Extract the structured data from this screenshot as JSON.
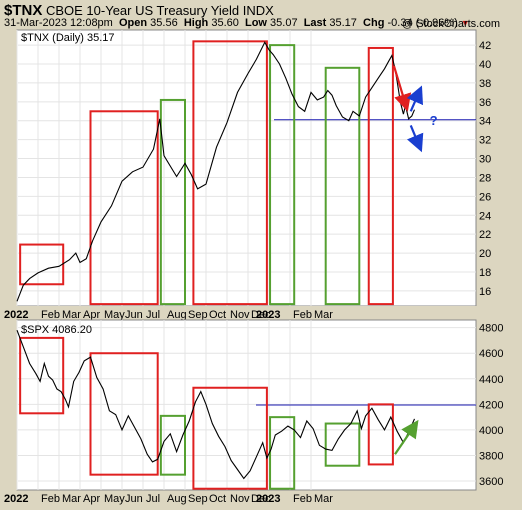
{
  "header": {
    "symbol": "$TNX",
    "name": "CBOE 10-Year US Treasury Yield",
    "index": "INDX",
    "datetime": "31-Mar-2023 12:08pm",
    "open_label": "Open",
    "open": "35.56",
    "high_label": "High",
    "high": "35.60",
    "low_label": "Low",
    "low": "35.07",
    "last_label": "Last",
    "last": "35.17",
    "chg_label": "Chg",
    "chg": "-0.34 (-0.96%)",
    "chg_marker": "▼",
    "brand": "@ StockCharts.com"
  },
  "colors": {
    "background": "#dcd6c0",
    "plot": "#ffffff",
    "red_box": "#e02020",
    "green_box": "#55a030",
    "level_line": "#1a1ab0",
    "blue_arrow": "#1a3fd0",
    "price": "#000000"
  },
  "chart_data": [
    {
      "type": "line",
      "title": "$TNX (Daily) 35.17",
      "series": [
        {
          "name": "$TNX (Daily)",
          "points": [
            [
              0,
              14.9
            ],
            [
              0.3,
              16.6
            ],
            [
              0.6,
              17.3
            ],
            [
              1.0,
              17.9
            ],
            [
              1.5,
              18.4
            ],
            [
              2.0,
              18.6
            ],
            [
              2.5,
              19.3
            ],
            [
              2.8,
              20.0
            ],
            [
              3.0,
              19.0
            ],
            [
              3.3,
              19.4
            ],
            [
              3.6,
              21.3
            ],
            [
              4.0,
              23.3
            ],
            [
              4.5,
              25.0
            ],
            [
              5.0,
              27.6
            ],
            [
              5.5,
              28.6
            ],
            [
              6.0,
              29.1
            ],
            [
              6.5,
              31.0
            ],
            [
              6.8,
              34.2
            ],
            [
              7.0,
              30.3
            ],
            [
              7.3,
              29.2
            ],
            [
              7.6,
              28.1
            ],
            [
              8.0,
              29.5
            ],
            [
              8.3,
              28.3
            ],
            [
              8.6,
              26.8
            ],
            [
              9.0,
              27.3
            ],
            [
              9.5,
              31.2
            ],
            [
              10.0,
              33.8
            ],
            [
              10.5,
              37.0
            ],
            [
              11.0,
              39.0
            ],
            [
              11.4,
              40.5
            ],
            [
              11.8,
              42.3
            ],
            [
              12.0,
              41.5
            ],
            [
              12.2,
              41.0
            ],
            [
              12.5,
              40.0
            ],
            [
              12.8,
              38.5
            ],
            [
              13.1,
              36.8
            ],
            [
              13.4,
              35.5
            ],
            [
              13.7,
              35.0
            ],
            [
              14.0,
              37.0
            ],
            [
              14.3,
              36.2
            ],
            [
              14.6,
              36.5
            ],
            [
              14.8,
              37.2
            ],
            [
              15.0,
              36.7
            ],
            [
              15.2,
              35.6
            ],
            [
              15.5,
              34.4
            ],
            [
              15.8,
              34.0
            ],
            [
              16.0,
              35.0
            ],
            [
              16.3,
              34.5
            ],
            [
              16.6,
              36.5
            ],
            [
              16.9,
              37.5
            ],
            [
              17.2,
              38.5
            ],
            [
              17.5,
              39.5
            ],
            [
              17.7,
              40.3
            ],
            [
              17.85,
              40.9
            ],
            [
              18.0,
              39.5
            ],
            [
              18.1,
              38.2
            ],
            [
              18.25,
              36.0
            ],
            [
              18.4,
              34.7
            ],
            [
              18.5,
              35.6
            ],
            [
              18.65,
              34.2
            ],
            [
              18.8,
              34.5
            ],
            [
              18.93,
              35.17
            ]
          ]
        }
      ],
      "x_ticks": [
        "2022",
        "Feb",
        "Mar",
        "Apr",
        "May",
        "Jun",
        "Jul",
        "Aug",
        "Sep",
        "Oct",
        "Nov",
        "Dec",
        "2023",
        "Feb",
        "Mar"
      ],
      "y_ticks": [
        16,
        18,
        20,
        22,
        24,
        26,
        28,
        30,
        32,
        34,
        36,
        38,
        40,
        42
      ],
      "ylim": [
        14.4,
        43.6
      ],
      "reference_line": 34.1,
      "annotations": [
        {
          "shape": "box",
          "color": "red",
          "x": [
            0.15,
            2.2
          ],
          "y": [
            20.9,
            16.7
          ]
        },
        {
          "shape": "box",
          "color": "red",
          "x": [
            3.5,
            6.7
          ],
          "y": [
            35.0,
            14.6
          ]
        },
        {
          "shape": "box",
          "color": "green",
          "x": [
            6.85,
            8.0
          ],
          "y": [
            36.2,
            14.6
          ]
        },
        {
          "shape": "box",
          "color": "red",
          "x": [
            8.4,
            11.9
          ],
          "y": [
            42.4,
            14.6
          ]
        },
        {
          "shape": "box",
          "color": "green",
          "x": [
            12.05,
            13.2
          ],
          "y": [
            42.0,
            14.6
          ]
        },
        {
          "shape": "box",
          "color": "green",
          "x": [
            14.7,
            16.3
          ],
          "y": [
            39.6,
            14.6
          ]
        },
        {
          "shape": "box",
          "color": "red",
          "x": [
            16.75,
            17.9
          ],
          "y": [
            41.7,
            14.6
          ]
        },
        {
          "shape": "arrow",
          "color": "red",
          "from": [
            17.95,
            39.8
          ],
          "to": [
            18.55,
            35.4
          ]
        },
        {
          "shape": "arrow",
          "color": "blue",
          "from": [
            18.75,
            35.0
          ],
          "to": [
            19.2,
            37.3
          ]
        },
        {
          "shape": "arrow",
          "color": "blue",
          "from": [
            18.75,
            33.5
          ],
          "to": [
            19.2,
            31.1
          ]
        },
        {
          "shape": "text",
          "text": "?",
          "color": "blue",
          "at": [
            19.65,
            34.1
          ]
        }
      ]
    },
    {
      "type": "line",
      "title": "$SPX 4086.20",
      "series": [
        {
          "name": "$SPX",
          "points": [
            [
              0,
              4780
            ],
            [
              0.3,
              4650
            ],
            [
              0.6,
              4520
            ],
            [
              0.9,
              4440
            ],
            [
              1.1,
              4380
            ],
            [
              1.3,
              4520
            ],
            [
              1.5,
              4420
            ],
            [
              1.7,
              4390
            ],
            [
              1.9,
              4320
            ],
            [
              2.1,
              4300
            ],
            [
              2.3,
              4240
            ],
            [
              2.45,
              4180
            ],
            [
              2.7,
              4380
            ],
            [
              2.95,
              4450
            ],
            [
              3.2,
              4540
            ],
            [
              3.5,
              4570
            ],
            [
              3.8,
              4410
            ],
            [
              4.1,
              4320
            ],
            [
              4.4,
              4150
            ],
            [
              4.7,
              4120
            ],
            [
              5.0,
              4000
            ],
            [
              5.3,
              4110
            ],
            [
              5.6,
              4020
            ],
            [
              5.9,
              3930
            ],
            [
              6.2,
              3810
            ],
            [
              6.45,
              3750
            ],
            [
              6.7,
              3770
            ],
            [
              7.0,
              3910
            ],
            [
              7.3,
              3970
            ],
            [
              7.6,
              3830
            ],
            [
              7.9,
              3960
            ],
            [
              8.2,
              4070
            ],
            [
              8.5,
              4220
            ],
            [
              8.75,
              4300
            ],
            [
              9.0,
              4200
            ],
            [
              9.3,
              4050
            ],
            [
              9.6,
              3950
            ],
            [
              9.9,
              3870
            ],
            [
              10.2,
              3760
            ],
            [
              10.5,
              3690
            ],
            [
              10.8,
              3620
            ],
            [
              11.1,
              3680
            ],
            [
              11.4,
              3790
            ],
            [
              11.7,
              3900
            ],
            [
              11.9,
              3780
            ],
            [
              12.1,
              3850
            ],
            [
              12.3,
              3960
            ],
            [
              12.6,
              3990
            ],
            [
              12.9,
              4030
            ],
            [
              13.2,
              4000
            ],
            [
              13.5,
              3940
            ],
            [
              13.8,
              4070
            ],
            [
              14.1,
              4010
            ],
            [
              14.4,
              3880
            ],
            [
              14.7,
              3850
            ],
            [
              15.0,
              3840
            ],
            [
              15.3,
              3930
            ],
            [
              15.6,
              4000
            ],
            [
              15.9,
              4050
            ],
            [
              16.2,
              4150
            ],
            [
              16.4,
              4010
            ],
            [
              16.6,
              4110
            ],
            [
              16.9,
              4170
            ],
            [
              17.2,
              4080
            ],
            [
              17.5,
              4000
            ],
            [
              17.8,
              4100
            ],
            [
              18.1,
              3990
            ],
            [
              18.4,
              3900
            ],
            [
              18.7,
              4000
            ],
            [
              18.93,
              4086.2
            ]
          ]
        }
      ],
      "x_ticks": [
        "2022",
        "Feb",
        "Mar",
        "Apr",
        "May",
        "Jun",
        "Jul",
        "Aug",
        "Sep",
        "Oct",
        "Nov",
        "Dec",
        "2023",
        "Feb",
        "Mar"
      ],
      "y_ticks": [
        3600,
        3800,
        4000,
        4200,
        4400,
        4600,
        4800
      ],
      "ylim": [
        3530,
        4860
      ],
      "reference_line": 4195,
      "annotations": [
        {
          "shape": "box",
          "color": "red",
          "x": [
            0.15,
            2.2
          ],
          "y": [
            4720,
            4130
          ]
        },
        {
          "shape": "box",
          "color": "red",
          "x": [
            3.5,
            6.7
          ],
          "y": [
            4600,
            3650
          ]
        },
        {
          "shape": "box",
          "color": "green",
          "x": [
            6.85,
            8.0
          ],
          "y": [
            4110,
            3650
          ]
        },
        {
          "shape": "box",
          "color": "red",
          "x": [
            8.4,
            11.9
          ],
          "y": [
            4330,
            3540
          ]
        },
        {
          "shape": "box",
          "color": "green",
          "x": [
            12.05,
            13.2
          ],
          "y": [
            4100,
            3540
          ]
        },
        {
          "shape": "box",
          "color": "green",
          "x": [
            14.7,
            16.3
          ],
          "y": [
            4050,
            3720
          ]
        },
        {
          "shape": "box",
          "color": "red",
          "x": [
            16.75,
            17.9
          ],
          "y": [
            4200,
            3730
          ]
        },
        {
          "shape": "arrow",
          "color": "green",
          "from": [
            18.0,
            3810
          ],
          "to": [
            19.0,
            4050
          ]
        }
      ]
    }
  ]
}
